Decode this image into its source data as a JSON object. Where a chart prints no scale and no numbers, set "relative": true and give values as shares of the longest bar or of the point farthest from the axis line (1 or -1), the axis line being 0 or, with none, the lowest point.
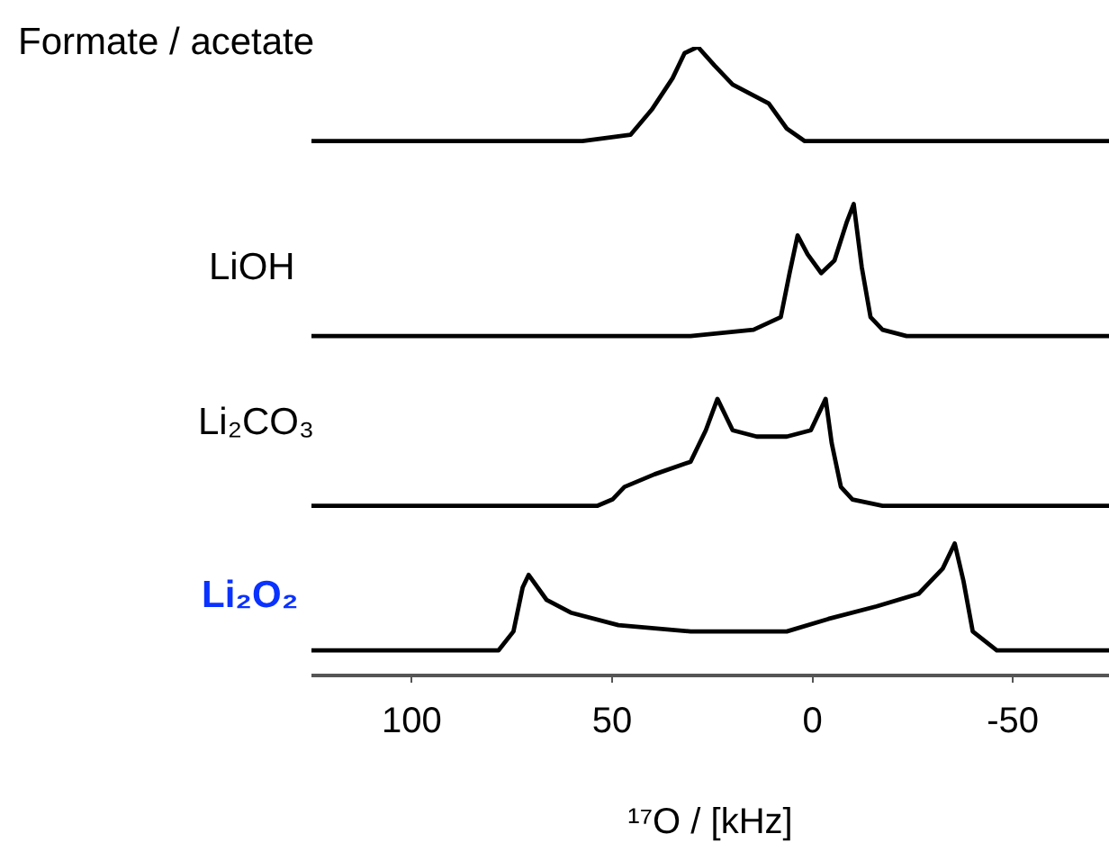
{
  "chart_data": {
    "type": "line",
    "relative": true,
    "tick_labels": "x",
    "xlim": [
      125,
      -74
    ],
    "xticks": [
      100,
      50,
      0,
      -50
    ],
    "xlabel": "¹⁷O / [kHz]",
    "series": [
      {
        "name": "Formate / acetate",
        "color": "#000000",
        "x": [
          125,
          57.4,
          45.4,
          40.1,
          34.9,
          31.9,
          28.6,
          24.4,
          19.9,
          10.9,
          6.4,
          1.9,
          -7.1,
          -74
        ],
        "values": [
          0.85,
          0.85,
          0.86,
          0.9,
          0.95,
          0.99,
          1,
          0.97,
          0.94,
          0.91,
          0.87,
          0.85,
          0.85,
          0.85
        ]
      },
      {
        "name": "LiOH",
        "color": "#000000",
        "x": [
          125,
          30.4,
          14.7,
          7.9,
          5.7,
          3.7,
          1.2,
          -2.2,
          -5.5,
          -8.5,
          -10.3,
          -12.3,
          -14.5,
          -17.5,
          -23.5,
          -74
        ],
        "values": [
          0.54,
          0.54,
          0.55,
          0.57,
          0.64,
          0.7,
          0.67,
          0.64,
          0.66,
          0.72,
          0.75,
          0.65,
          0.57,
          0.55,
          0.54,
          0.54
        ]
      },
      {
        "name": "Li₂CO₃",
        "color": "#000000",
        "x": [
          125,
          53.6,
          49.9,
          46.9,
          39.4,
          30.4,
          26.6,
          23.7,
          19.9,
          13.9,
          6.4,
          0.4,
          -3.3,
          -4.8,
          -7.1,
          -10.0,
          -17.5,
          -74
        ],
        "values": [
          0.27,
          0.27,
          0.28,
          0.3,
          0.32,
          0.34,
          0.39,
          0.44,
          0.39,
          0.38,
          0.38,
          0.39,
          0.44,
          0.37,
          0.3,
          0.28,
          0.27,
          0.27
        ]
      },
      {
        "name": "Li₂O₂",
        "color": "#000000",
        "x": [
          125,
          84.3,
          78.3,
          74.6,
          72.3,
          70.8,
          66.3,
          60.3,
          48.4,
          30.4,
          6.4,
          -4.0,
          -16.0,
          -26.5,
          -32.5,
          -35.5,
          -37.7,
          -40.0,
          -46.0,
          -53.5,
          -74
        ],
        "values": [
          0.04,
          0.04,
          0.04,
          0.07,
          0.14,
          0.16,
          0.12,
          0.1,
          0.08,
          0.07,
          0.07,
          0.09,
          0.11,
          0.13,
          0.17,
          0.21,
          0.15,
          0.07,
          0.04,
          0.04,
          0.04
        ]
      }
    ]
  }
}
